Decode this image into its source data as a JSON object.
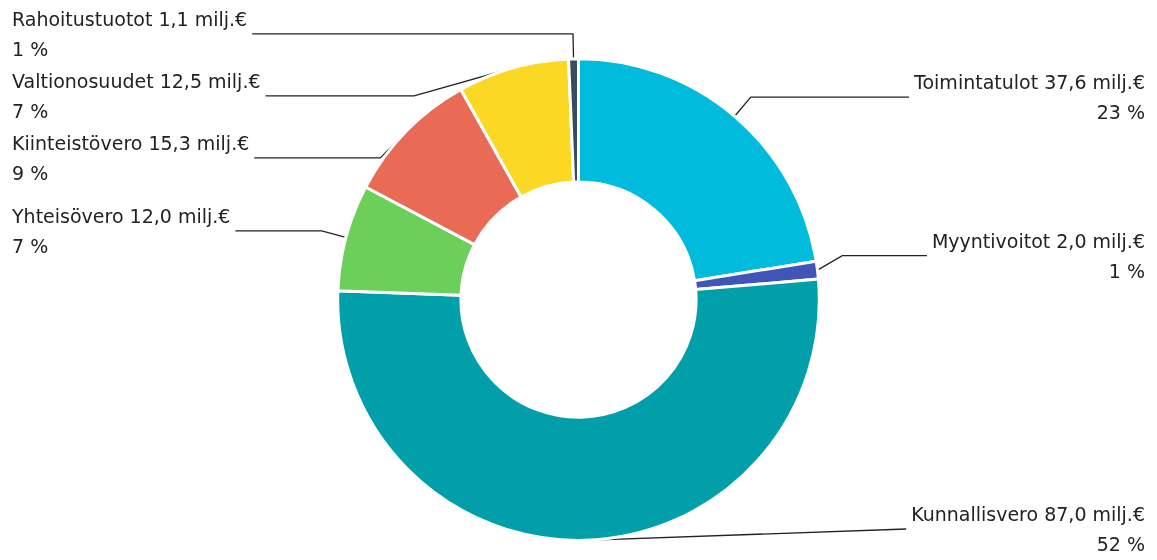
{
  "chart_data": {
    "type": "donut",
    "categories": [
      "Toimintatulot",
      "Myyntivoitot",
      "Kunnallisvero",
      "Yhteisövero",
      "Kiinteistövero",
      "Valtionosuudet",
      "Rahoitustuotot"
    ],
    "values": [
      37.6,
      2.0,
      87.0,
      12.0,
      15.3,
      12.5,
      1.1
    ],
    "colors": [
      "#00bbdc",
      "#3f55b8",
      "#009faa",
      "#6ccf5a",
      "#e96a55",
      "#fbd824",
      "#3b4a5c"
    ],
    "value_labels": [
      "37,6 milj.€\n23 %",
      "2,0 milj.€\n1 %",
      "87,0 milj.€\n52 %",
      "12,0 milj.€\n7 %",
      "15,3 milj.€\n9 %",
      "12,5 milj.€\n7 %",
      "1,1 milj.€\n1 %"
    ],
    "legend": false
  }
}
